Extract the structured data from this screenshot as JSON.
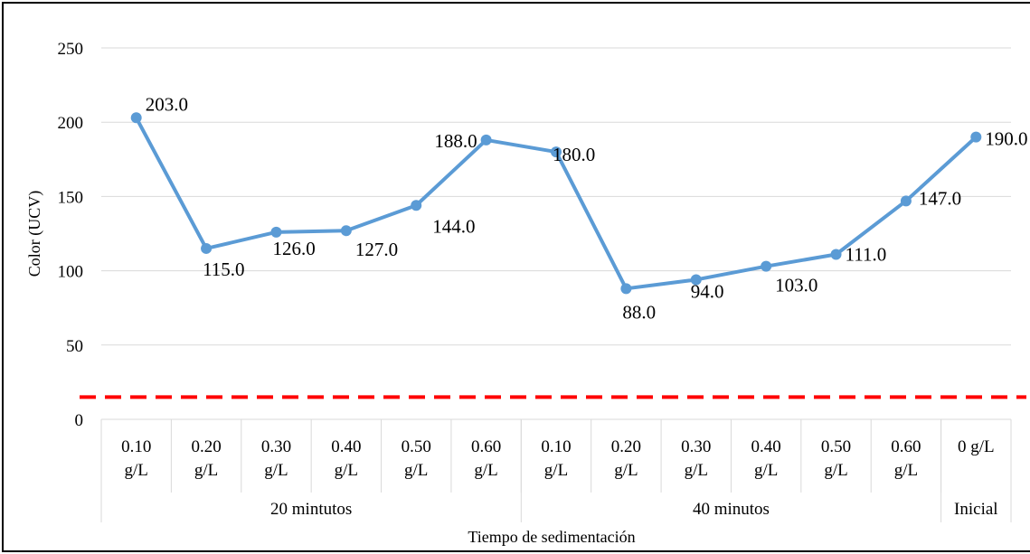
{
  "chart_data": {
    "type": "line",
    "title": "",
    "xlabel": "Tiempo de sedimentación",
    "ylabel": "Color (UCV)",
    "ylim": [
      0,
      250
    ],
    "yticks": [
      "0",
      "50",
      "100",
      "150",
      "200",
      "250"
    ],
    "grid": true,
    "legend": "none",
    "categories": [
      {
        "line1": "0.10",
        "line2": "g/L"
      },
      {
        "line1": "0.20",
        "line2": "g/L"
      },
      {
        "line1": "0.30",
        "line2": "g/L"
      },
      {
        "line1": "0.40",
        "line2": "g/L"
      },
      {
        "line1": "0.50",
        "line2": "g/L"
      },
      {
        "line1": "0.60",
        "line2": "g/L"
      },
      {
        "line1": "0.10",
        "line2": "g/L"
      },
      {
        "line1": "0.20",
        "line2": "g/L"
      },
      {
        "line1": "0.30",
        "line2": "g/L"
      },
      {
        "line1": "0.40",
        "line2": "g/L"
      },
      {
        "line1": "0.50",
        "line2": "g/L"
      },
      {
        "line1": "0.60",
        "line2": "g/L"
      },
      {
        "line1": "0 g/L",
        "line2": ""
      }
    ],
    "groups": [
      {
        "label": "20 mintutos",
        "count": 6
      },
      {
        "label": "40 minutos",
        "count": 6
      },
      {
        "label": "Inicial",
        "count": 1
      }
    ],
    "series": [
      {
        "values": [
          203,
          115,
          126,
          127,
          144,
          188,
          180,
          88,
          94,
          103,
          111,
          147,
          190
        ],
        "data_labels": [
          "203.0",
          "115.0",
          "126.0",
          "127.0",
          "144.0",
          "188.0",
          "180.0",
          "88.0",
          "94.0",
          "103.0",
          "111.0",
          "147.0",
          "190.0"
        ],
        "color": "#5b9bd5"
      }
    ],
    "reference_line": {
      "value": 15,
      "color": "#ff0000",
      "style": "dashed"
    }
  }
}
